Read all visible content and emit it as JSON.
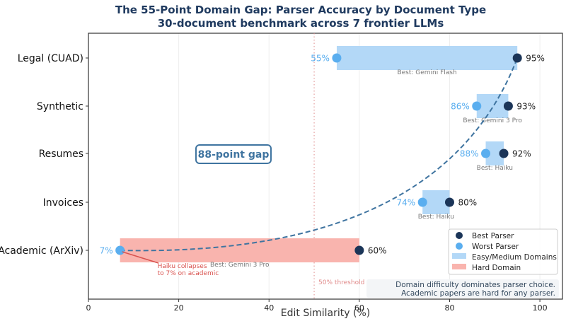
{
  "chart_data": {
    "type": "range-dumbbell",
    "title": "The 55-Point Domain Gap: Parser Accuracy by Document Type",
    "subtitle": "30-document benchmark across 7 frontier LLMs",
    "xlabel": "Edit Similarity (%)",
    "xlim": [
      0,
      105
    ],
    "xticks": [
      0,
      20,
      40,
      60,
      80,
      100
    ],
    "grid": "vertical",
    "categories": [
      "Legal (CUAD)",
      "Synthetic",
      "Resumes",
      "Invoices",
      "Academic (ArXiv)"
    ],
    "rows": [
      {
        "category": "Legal (CUAD)",
        "worst": 55,
        "best": 95,
        "best_label": "Best: Gemini Flash",
        "hard": false,
        "worst_text": "55%",
        "best_text": "95%"
      },
      {
        "category": "Synthetic",
        "worst": 86,
        "best": 93,
        "best_label": "Best: Gemini 3 Pro",
        "hard": false,
        "worst_text": "86%",
        "best_text": "93%"
      },
      {
        "category": "Resumes",
        "worst": 88,
        "best": 92,
        "best_label": "Best: Haiku",
        "hard": false,
        "worst_text": "88%",
        "best_text": "92%"
      },
      {
        "category": "Invoices",
        "worst": 74,
        "best": 80,
        "best_label": "Best: Haiku",
        "hard": false,
        "worst_text": "74%",
        "best_text": "80%"
      },
      {
        "category": "Academic (ArXiv)",
        "worst": 7,
        "best": 60,
        "best_label": "Best: Gemini 3 Pro",
        "hard": true,
        "worst_text": "7%",
        "best_text": "60%"
      }
    ],
    "threshold": {
      "value": 50,
      "label": "50% threshold"
    },
    "gap_label": "88-point gap",
    "annotation": {
      "line1": "Haiku collapses",
      "line2": "to 7% on academic"
    },
    "note": {
      "line1": "Domain difficulty dominates parser choice.",
      "line2": "Academic papers are hard for any parser."
    },
    "legend": {
      "placement": "lower-right",
      "entries": [
        "Best Parser",
        "Worst Parser",
        "Easy/Medium Domains",
        "Hard Domain"
      ]
    },
    "colors": {
      "best": "#1b3558",
      "worst": "#5aaeef",
      "easy_bar": "#b3d8f7",
      "hard_bar": "#f9b4ae",
      "curve": "#3f74a0",
      "threshold": "#e08a8a",
      "annotation": "#d9534f",
      "title": "#1f3a5f"
    }
  }
}
